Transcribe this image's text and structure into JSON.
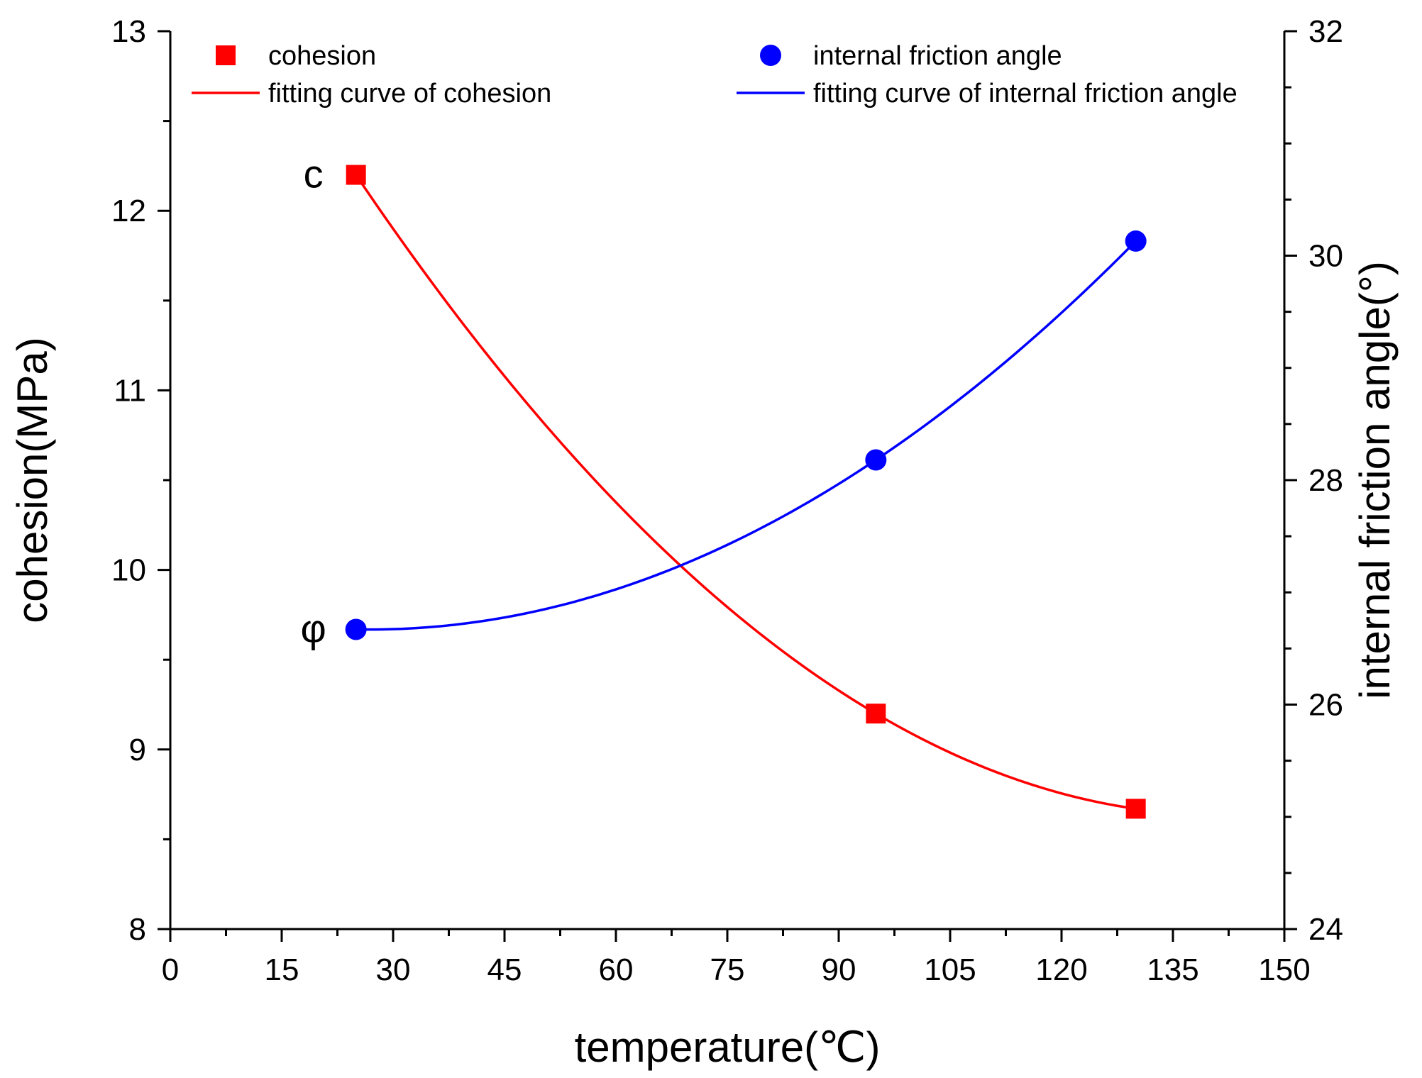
{
  "chart_data": {
    "type": "line",
    "xlabel": "temperature(℃)",
    "ylabel": "cohesion(MPa)",
    "y2label": "internal friction angle(°)",
    "xlim": [
      0,
      150
    ],
    "ylim": [
      8,
      13
    ],
    "y2lim": [
      24,
      32
    ],
    "x_ticks": [
      0,
      15,
      30,
      45,
      60,
      75,
      90,
      105,
      120,
      135,
      150
    ],
    "y_ticks": [
      8,
      9,
      10,
      11,
      12,
      13
    ],
    "y2_ticks": [
      24,
      26,
      28,
      30,
      32
    ],
    "grid": false,
    "legend_position": "top",
    "series": [
      {
        "name": "cohesion",
        "fit_name": "fitting curve of cohesion",
        "axis": "left",
        "marker": "square",
        "color": "#ff0000",
        "label": "c",
        "x": [
          25,
          95,
          130
        ],
        "values": [
          12.2,
          9.2,
          8.67
        ]
      },
      {
        "name": "internal friction angle",
        "fit_name": "fitting curve of internal friction angle",
        "axis": "right",
        "marker": "circle",
        "color": "#0000ff",
        "label": "φ",
        "x": [
          25,
          95,
          130
        ],
        "values": [
          26.67,
          28.18,
          30.13
        ]
      }
    ]
  }
}
